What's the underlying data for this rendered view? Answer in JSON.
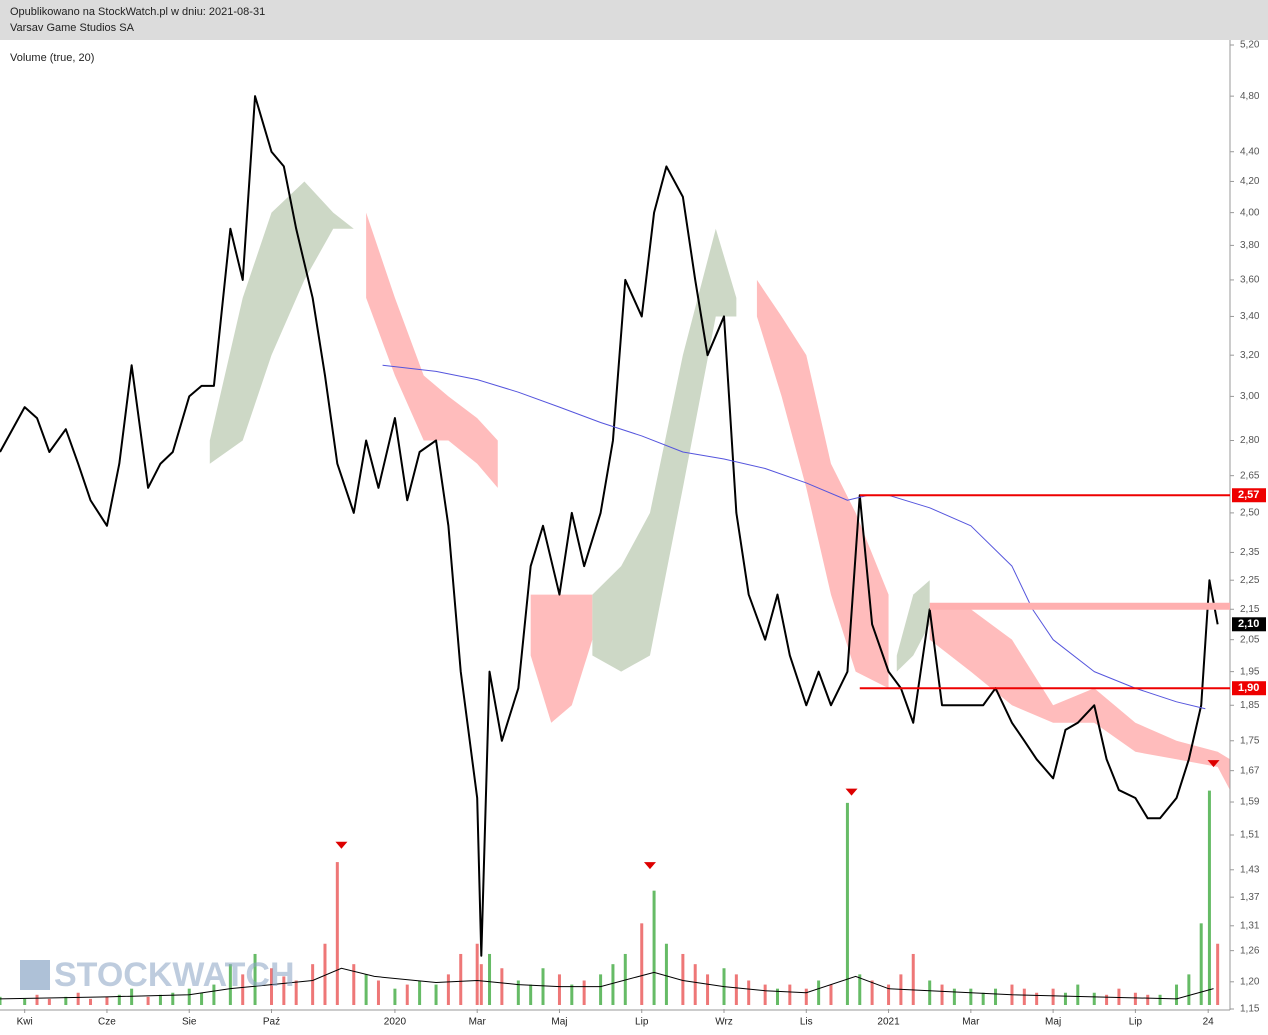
{
  "chart_data": {
    "type": "line",
    "subtitle": "Opublikowano na StockWatch.pl w dniu: 2021-08-31",
    "title": "Varsav Game Studios SA",
    "indicator_label": "Volume (true, 20)",
    "watermark": "STOCKWATCH",
    "ylog": true,
    "ylim": [
      1.15,
      5.2
    ],
    "yticks": [
      {
        "value": 5.2,
        "label": "5,20"
      },
      {
        "value": 4.8,
        "label": "4,80"
      },
      {
        "value": 4.4,
        "label": "4,40"
      },
      {
        "value": 4.2,
        "label": "4,20"
      },
      {
        "value": 4.0,
        "label": "4,00"
      },
      {
        "value": 3.8,
        "label": "3,80"
      },
      {
        "value": 3.6,
        "label": "3,60"
      },
      {
        "value": 3.4,
        "label": "3,40"
      },
      {
        "value": 3.2,
        "label": "3,20"
      },
      {
        "value": 3.0,
        "label": "3,00"
      },
      {
        "value": 2.8,
        "label": "2,80"
      },
      {
        "value": 2.65,
        "label": "2,65"
      },
      {
        "value": 2.5,
        "label": "2,50"
      },
      {
        "value": 2.35,
        "label": "2,35"
      },
      {
        "value": 2.25,
        "label": "2,25"
      },
      {
        "value": 2.15,
        "label": "2,15"
      },
      {
        "value": 2.05,
        "label": "2,05"
      },
      {
        "value": 1.95,
        "label": "1,95"
      },
      {
        "value": 1.85,
        "label": "1,85"
      },
      {
        "value": 1.75,
        "label": "1,75"
      },
      {
        "value": 1.67,
        "label": "1,67"
      },
      {
        "value": 1.59,
        "label": "1,59"
      },
      {
        "value": 1.51,
        "label": "1,51"
      },
      {
        "value": 1.43,
        "label": "1,43"
      },
      {
        "value": 1.37,
        "label": "1,37"
      },
      {
        "value": 1.31,
        "label": "1,31"
      },
      {
        "value": 1.26,
        "label": "1,26"
      },
      {
        "value": 1.2,
        "label": "1,20"
      },
      {
        "value": 1.15,
        "label": "1,15"
      }
    ],
    "xlim": [
      -0.6,
      29.3
    ],
    "xticks": [
      {
        "value": 0,
        "label": "Kwi"
      },
      {
        "value": 2,
        "label": "Cze"
      },
      {
        "value": 4,
        "label": "Sie"
      },
      {
        "value": 6,
        "label": "Paź"
      },
      {
        "value": 9,
        "label": "2020"
      },
      {
        "value": 11,
        "label": "Mar"
      },
      {
        "value": 13,
        "label": "Maj"
      },
      {
        "value": 15,
        "label": "Lip"
      },
      {
        "value": 17,
        "label": "Wrz"
      },
      {
        "value": 19,
        "label": "Lis"
      },
      {
        "value": 21,
        "label": "2021"
      },
      {
        "value": 23,
        "label": "Mar"
      },
      {
        "value": 25,
        "label": "Maj"
      },
      {
        "value": 27,
        "label": "Lip"
      },
      {
        "value": 28.77,
        "label": "24"
      }
    ],
    "series": [
      {
        "color": "#000000",
        "x": [
          -0.6,
          0,
          0.3,
          0.6,
          1,
          1.3,
          1.6,
          2,
          2.3,
          2.6,
          3,
          3.3,
          3.6,
          4,
          4.3,
          4.6,
          5,
          5.3,
          5.6,
          6,
          6.3,
          6.6,
          7,
          7.3,
          7.6,
          8,
          8.3,
          8.6,
          9,
          9.3,
          9.6,
          10,
          10.3,
          10.6,
          11,
          11.1,
          11.3,
          11.6,
          12,
          12.3,
          12.6,
          13,
          13.3,
          13.6,
          14,
          14.3,
          14.6,
          15,
          15.3,
          15.6,
          16,
          16.3,
          16.6,
          17,
          17.3,
          17.6,
          18,
          18.3,
          18.6,
          19,
          19.3,
          19.6,
          20,
          20.3,
          20.6,
          21,
          21.3,
          21.6,
          22,
          22.3,
          22.6,
          23,
          23.3,
          23.6,
          24,
          24.3,
          24.6,
          25,
          25.3,
          25.6,
          26,
          26.3,
          26.6,
          27,
          27.3,
          27.6,
          28,
          28.3,
          28.6,
          28.8,
          29.0
        ],
        "values": [
          2.75,
          2.95,
          2.9,
          2.75,
          2.85,
          2.7,
          2.55,
          2.45,
          2.7,
          3.15,
          2.6,
          2.7,
          2.75,
          3.0,
          3.05,
          3.05,
          3.9,
          3.6,
          4.8,
          4.4,
          4.3,
          3.9,
          3.5,
          3.1,
          2.7,
          2.5,
          2.8,
          2.6,
          2.9,
          2.55,
          2.75,
          2.8,
          2.45,
          1.95,
          1.6,
          1.25,
          1.95,
          1.75,
          1.9,
          2.3,
          2.45,
          2.2,
          2.5,
          2.3,
          2.5,
          2.8,
          3.6,
          3.4,
          4.0,
          4.3,
          4.1,
          3.6,
          3.2,
          3.4,
          2.5,
          2.2,
          2.05,
          2.2,
          2.0,
          1.85,
          1.95,
          1.85,
          1.95,
          2.57,
          2.1,
          1.95,
          1.9,
          1.8,
          2.15,
          1.85,
          1.85,
          1.85,
          1.85,
          1.9,
          1.8,
          1.75,
          1.7,
          1.65,
          1.78,
          1.8,
          1.85,
          1.7,
          1.62,
          1.6,
          1.55,
          1.55,
          1.6,
          1.7,
          1.85,
          2.25,
          2.1
        ]
      },
      {
        "color": "#5555dd",
        "x": [
          8.7,
          10,
          11,
          12,
          13,
          14,
          15,
          16,
          17,
          18,
          19,
          20,
          20.5,
          21,
          22,
          23,
          24,
          24.5,
          25,
          26,
          27,
          28,
          28.7
        ],
        "values": [
          3.15,
          3.12,
          3.08,
          3.02,
          2.95,
          2.88,
          2.82,
          2.75,
          2.72,
          2.68,
          2.62,
          2.55,
          2.57,
          2.57,
          2.52,
          2.45,
          2.3,
          2.15,
          2.05,
          1.95,
          1.9,
          1.86,
          1.84
        ]
      }
    ],
    "cloud": [
      {
        "color": "#cdd8c6",
        "x": [
          4.5,
          5.3,
          6,
          6.8,
          7.5,
          8
        ],
        "upper": [
          2.8,
          3.5,
          4.0,
          4.2,
          4.0,
          3.9
        ],
        "lower": [
          2.7,
          2.8,
          3.2,
          3.6,
          3.9,
          3.9
        ]
      },
      {
        "color": "#ffbcbc",
        "x": [
          8.3,
          9,
          9.7,
          10.3,
          11,
          11.5
        ],
        "upper": [
          4.0,
          3.5,
          3.1,
          3.0,
          2.9,
          2.8
        ],
        "lower": [
          3.5,
          3.1,
          2.8,
          2.8,
          2.7,
          2.6
        ]
      },
      {
        "color": "#ffbcbc",
        "x": [
          12.3,
          12.8,
          13.3,
          13.8
        ],
        "upper": [
          2.2,
          2.2,
          2.2,
          2.2
        ],
        "lower": [
          2.0,
          1.8,
          1.85,
          2.05
        ]
      },
      {
        "color": "#cdd8c6",
        "x": [
          13.8,
          14.5,
          15.2,
          16,
          16.8,
          17.3
        ],
        "upper": [
          2.2,
          2.3,
          2.5,
          3.2,
          3.9,
          3.5
        ],
        "lower": [
          2.0,
          1.95,
          2.0,
          2.6,
          3.4,
          3.4
        ]
      },
      {
        "color": "#ffbcbc",
        "x": [
          17.8,
          18.4,
          19,
          19.6,
          20.2,
          21
        ],
        "upper": [
          3.6,
          3.4,
          3.2,
          2.7,
          2.5,
          2.2
        ],
        "lower": [
          3.4,
          3.0,
          2.6,
          2.2,
          1.95,
          1.9
        ]
      },
      {
        "color": "#cdd8c6",
        "x": [
          21.2,
          21.6,
          22
        ],
        "upper": [
          2.0,
          2.2,
          2.25
        ],
        "lower": [
          1.95,
          2.0,
          2.1
        ]
      },
      {
        "color": "#ffbcbc",
        "x": [
          22,
          23,
          24,
          25,
          26,
          27,
          28,
          29,
          29.3
        ],
        "upper": [
          2.15,
          2.15,
          2.05,
          1.85,
          1.9,
          1.8,
          1.75,
          1.72,
          1.7
        ],
        "lower": [
          2.05,
          1.95,
          1.85,
          1.8,
          1.8,
          1.72,
          1.7,
          1.68,
          1.62
        ]
      }
    ],
    "levels": [
      {
        "value": 2.57,
        "label": "2,57",
        "color": "#ee0000"
      },
      {
        "value": 2.16,
        "color": "#ffb0b0"
      },
      {
        "value": 1.9,
        "label": "1,90",
        "color": "#ee0000"
      }
    ],
    "current_price": {
      "value": 2.1,
      "label": "2,10"
    },
    "volume": {
      "ylim": [
        0,
        120
      ],
      "up_color": "#66bb66",
      "down_color": "#ee7777",
      "ma_color": "#000000",
      "values": [
        4,
        3,
        5,
        3,
        4,
        6,
        3,
        4,
        5,
        8,
        4,
        5,
        6,
        8,
        6,
        10,
        20,
        15,
        25,
        18,
        14,
        12,
        20,
        30,
        70,
        20,
        15,
        12,
        8,
        10,
        12,
        10,
        15,
        25,
        30,
        20,
        25,
        18,
        12,
        10,
        18,
        15,
        10,
        12,
        15,
        20,
        25,
        40,
        56,
        30,
        25,
        20,
        15,
        18,
        15,
        12,
        10,
        8,
        10,
        8,
        12,
        10,
        99,
        15,
        12,
        10,
        15,
        25,
        12,
        10,
        8,
        8,
        6,
        8,
        10,
        8,
        6,
        8,
        6,
        10,
        6,
        5,
        8,
        6,
        5,
        5,
        10,
        15,
        40,
        105,
        30
      ],
      "ma_x": [
        -0.6,
        2,
        4,
        5,
        6,
        7,
        7.7,
        8.5,
        10,
        11,
        12,
        13,
        14,
        15.3,
        16,
        17,
        18,
        19,
        20.2,
        21,
        22,
        24,
        26,
        28,
        28.9
      ],
      "ma": [
        3,
        4,
        5,
        8,
        10,
        12,
        18,
        14,
        11,
        12,
        10,
        9,
        9,
        16,
        12,
        9,
        7,
        6,
        14,
        8,
        7,
        5,
        4,
        3,
        8
      ]
    },
    "signals": {
      "color": "#dd0000",
      "x": [
        7.7,
        15.2,
        20.1,
        28.9
      ],
      "values": [
        78,
        68,
        104,
        118
      ]
    }
  }
}
